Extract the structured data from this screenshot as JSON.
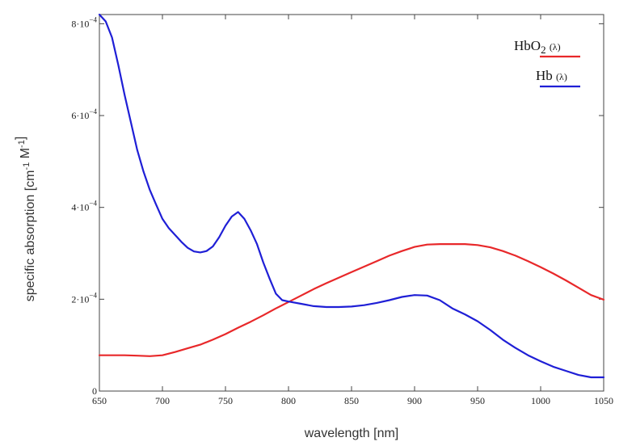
{
  "chart_data": {
    "type": "line",
    "xlabel": "wavelength [nm]",
    "ylabel": "specific absorption [cm⁻¹ M⁻¹]",
    "xlim": [
      650,
      1050
    ],
    "ylim": [
      0,
      0.00082
    ],
    "x_ticks": [
      "650",
      "700",
      "750",
      "800",
      "850",
      "900",
      "950",
      "1000",
      "1050"
    ],
    "x_tick_values": [
      650,
      700,
      750,
      800,
      850,
      900,
      950,
      1000,
      1050
    ],
    "y_ticks": [
      {
        "value": 0,
        "base": "0",
        "exp": ""
      },
      {
        "value": 0.0002,
        "base": "2·10",
        "exp": "−4"
      },
      {
        "value": 0.0004,
        "base": "4·10",
        "exp": "−4"
      },
      {
        "value": 0.0006,
        "base": "6·10",
        "exp": "−4"
      },
      {
        "value": 0.0008,
        "base": "8·10",
        "exp": "−4"
      }
    ],
    "grid": false,
    "legend_position": "top-right",
    "series": [
      {
        "name": "HbO",
        "name_sub": "2",
        "name_arg": "(λ)",
        "color": "#e8282a",
        "x": [
          650,
          660,
          670,
          680,
          690,
          700,
          710,
          720,
          730,
          740,
          750,
          760,
          770,
          780,
          790,
          800,
          810,
          820,
          830,
          840,
          850,
          860,
          870,
          880,
          890,
          900,
          910,
          920,
          930,
          940,
          950,
          960,
          970,
          980,
          990,
          1000,
          1010,
          1020,
          1030,
          1040,
          1050
        ],
        "y": [
          7.8e-05,
          7.8e-05,
          7.8e-05,
          7.7e-05,
          7.6e-05,
          7.8e-05,
          8.5e-05,
          9.3e-05,
          0.000101,
          0.000112,
          0.000124,
          0.000138,
          0.000151,
          0.000165,
          0.00018,
          0.000194,
          0.000208,
          0.000222,
          0.000235,
          0.000247,
          0.000259,
          0.000271,
          0.000283,
          0.000295,
          0.000305,
          0.000314,
          0.000319,
          0.00032,
          0.00032,
          0.00032,
          0.000318,
          0.000313,
          0.000305,
          0.000295,
          0.000283,
          0.00027,
          0.000256,
          0.000241,
          0.000225,
          0.000209,
          0.000199
        ]
      },
      {
        "name": "Hb",
        "name_sub": "",
        "name_arg": "(λ)",
        "color": "#1f1fd6",
        "x": [
          650,
          655,
          660,
          665,
          670,
          675,
          680,
          685,
          690,
          695,
          700,
          705,
          710,
          715,
          720,
          725,
          730,
          735,
          740,
          745,
          750,
          755,
          760,
          765,
          770,
          775,
          780,
          785,
          790,
          795,
          800,
          810,
          820,
          830,
          840,
          850,
          860,
          870,
          880,
          890,
          900,
          910,
          920,
          930,
          940,
          950,
          960,
          970,
          980,
          990,
          1000,
          1010,
          1020,
          1030,
          1040,
          1050
        ],
        "y": [
          0.00082,
          0.000805,
          0.00077,
          0.00071,
          0.000645,
          0.000585,
          0.000525,
          0.000478,
          0.000438,
          0.000406,
          0.000375,
          0.000355,
          0.00034,
          0.000325,
          0.000312,
          0.000304,
          0.000302,
          0.000305,
          0.000315,
          0.000335,
          0.00036,
          0.00038,
          0.00039,
          0.000375,
          0.00035,
          0.00032,
          0.00028,
          0.000245,
          0.000212,
          0.000198,
          0.000195,
          0.00019,
          0.000185,
          0.000183,
          0.000183,
          0.000184,
          0.000187,
          0.000192,
          0.000198,
          0.000205,
          0.000209,
          0.000208,
          0.000198,
          0.00018,
          0.000167,
          0.000152,
          0.000133,
          0.000112,
          9.4e-05,
          7.8e-05,
          6.5e-05,
          5.3e-05,
          4.4e-05,
          3.5e-05,
          3e-05,
          3e-05
        ]
      }
    ]
  }
}
